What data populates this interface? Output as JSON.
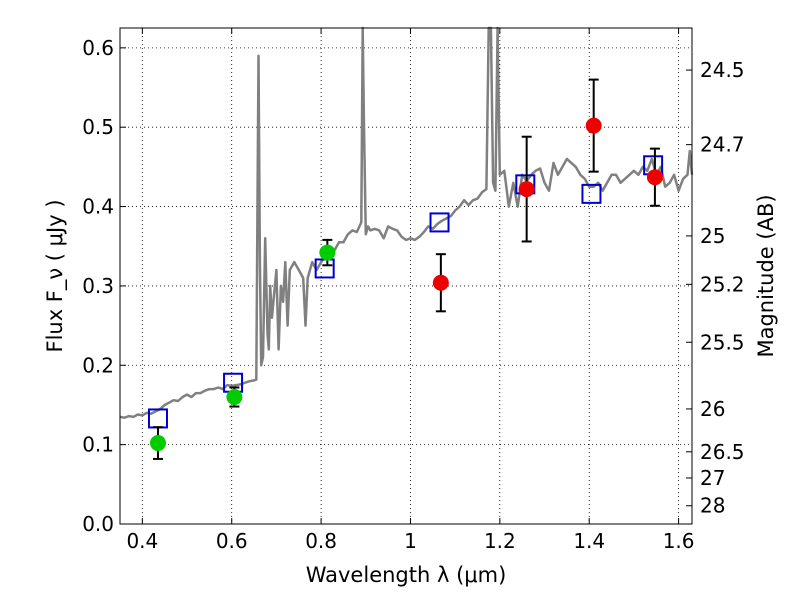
{
  "chart_data": {
    "type": "scatter",
    "title": "",
    "xlabel": "Wavelength  λ (μm)",
    "ylabel": "Flux  F_ν  ( μJy )",
    "y2label": "Magnitude (AB)",
    "xlim": [
      0.35,
      1.63
    ],
    "ylim": [
      0.0,
      0.625
    ],
    "grid": true,
    "x_ticks": [
      0.4,
      0.6,
      0.8,
      1.0,
      1.2,
      1.4,
      1.6
    ],
    "x_tick_labels": [
      "0.4",
      "0.6",
      "0.8",
      "1",
      "1.2",
      "1.4",
      "1.6"
    ],
    "y_ticks": [
      0.0,
      0.1,
      0.2,
      0.3,
      0.4,
      0.5,
      0.6
    ],
    "y_tick_labels": [
      "0.0",
      "0.1",
      "0.2",
      "0.3",
      "0.4",
      "0.5",
      "0.6"
    ],
    "y2_ticks": [
      {
        "label": "24.5",
        "flux": 0.572
      },
      {
        "label": "24.7",
        "flux": 0.478
      },
      {
        "label": "25",
        "flux": 0.363
      },
      {
        "label": "25.2",
        "flux": 0.302
      },
      {
        "label": "25.5",
        "flux": 0.229
      },
      {
        "label": "26",
        "flux": 0.145
      },
      {
        "label": "26.5",
        "flux": 0.091
      },
      {
        "label": "27",
        "flux": 0.058
      },
      {
        "label": "28",
        "flux": 0.023
      }
    ],
    "series": [
      {
        "kind": "model_spectrum",
        "color": "#808080",
        "x": [
          0.35,
          0.36,
          0.37,
          0.38,
          0.39,
          0.4,
          0.41,
          0.42,
          0.43,
          0.44,
          0.45,
          0.46,
          0.47,
          0.48,
          0.49,
          0.5,
          0.51,
          0.52,
          0.53,
          0.54,
          0.55,
          0.56,
          0.57,
          0.58,
          0.59,
          0.6,
          0.61,
          0.62,
          0.63,
          0.64,
          0.65,
          0.655,
          0.66,
          0.663,
          0.666,
          0.67,
          0.675,
          0.68,
          0.683,
          0.686,
          0.69,
          0.7,
          0.705,
          0.71,
          0.715,
          0.72,
          0.725,
          0.73,
          0.74,
          0.75,
          0.76,
          0.765,
          0.77,
          0.78,
          0.79,
          0.8,
          0.81,
          0.82,
          0.83,
          0.84,
          0.85,
          0.86,
          0.87,
          0.88,
          0.89,
          0.893,
          0.896,
          0.9,
          0.905,
          0.91,
          0.92,
          0.93,
          0.94,
          0.95,
          0.96,
          0.97,
          0.98,
          0.99,
          1.0,
          1.01,
          1.02,
          1.03,
          1.04,
          1.05,
          1.06,
          1.07,
          1.08,
          1.09,
          1.1,
          1.11,
          1.12,
          1.13,
          1.14,
          1.15,
          1.16,
          1.17,
          1.175,
          1.18,
          1.185,
          1.19,
          1.195,
          1.2,
          1.21,
          1.22,
          1.23,
          1.24,
          1.25,
          1.26,
          1.27,
          1.28,
          1.29,
          1.3,
          1.31,
          1.32,
          1.33,
          1.34,
          1.35,
          1.36,
          1.37,
          1.38,
          1.39,
          1.4,
          1.41,
          1.42,
          1.43,
          1.44,
          1.45,
          1.46,
          1.47,
          1.48,
          1.49,
          1.5,
          1.51,
          1.52,
          1.53,
          1.54,
          1.55,
          1.56,
          1.57,
          1.58,
          1.59,
          1.6,
          1.61,
          1.62,
          1.625,
          1.63
        ],
        "y": [
          0.135,
          0.134,
          0.136,
          0.135,
          0.138,
          0.137,
          0.14,
          0.139,
          0.142,
          0.145,
          0.15,
          0.153,
          0.156,
          0.155,
          0.16,
          0.163,
          0.16,
          0.165,
          0.165,
          0.168,
          0.17,
          0.17,
          0.172,
          0.17,
          0.175,
          0.174,
          0.175,
          0.176,
          0.178,
          0.18,
          0.181,
          0.182,
          0.59,
          0.33,
          0.2,
          0.21,
          0.36,
          0.24,
          0.22,
          0.3,
          0.26,
          0.32,
          0.22,
          0.3,
          0.28,
          0.33,
          0.25,
          0.32,
          0.33,
          0.32,
          0.31,
          0.25,
          0.31,
          0.33,
          0.32,
          0.33,
          0.338,
          0.34,
          0.345,
          0.355,
          0.355,
          0.365,
          0.37,
          0.368,
          0.38,
          0.625,
          0.5,
          0.365,
          0.375,
          0.37,
          0.372,
          0.37,
          0.36,
          0.375,
          0.372,
          0.37,
          0.362,
          0.358,
          0.36,
          0.358,
          0.362,
          0.368,
          0.375,
          0.372,
          0.378,
          0.382,
          0.385,
          0.388,
          0.395,
          0.4,
          0.408,
          0.402,
          0.408,
          0.41,
          0.418,
          0.422,
          0.625,
          0.625,
          0.43,
          0.42,
          0.625,
          0.44,
          0.445,
          0.4,
          0.43,
          0.4,
          0.44,
          0.432,
          0.44,
          0.445,
          0.448,
          0.43,
          0.42,
          0.455,
          0.44,
          0.45,
          0.46,
          0.455,
          0.45,
          0.44,
          0.435,
          0.425,
          0.425,
          0.43,
          0.42,
          0.43,
          0.44,
          0.44,
          0.43,
          0.435,
          0.44,
          0.445,
          0.44,
          0.45,
          0.445,
          0.46,
          0.44,
          0.45,
          0.425,
          0.43,
          0.44,
          0.42,
          0.435,
          0.44,
          0.47,
          0.44
        ]
      },
      {
        "kind": "model_photometry",
        "marker": "square-open",
        "color": "#0000cc",
        "x": [
          0.435,
          0.603,
          0.808,
          1.065,
          1.257,
          1.405,
          1.543
        ],
        "y": [
          0.133,
          0.178,
          0.322,
          0.38,
          0.428,
          0.416,
          0.452
        ]
      },
      {
        "kind": "observed_optical",
        "marker": "circle",
        "color": "#00cc00",
        "x": [
          0.435,
          0.606,
          0.814
        ],
        "y": [
          0.102,
          0.16,
          0.342
        ],
        "yerr": [
          0.02,
          0.012,
          0.016
        ]
      },
      {
        "kind": "observed_nir",
        "marker": "circle",
        "color": "#ee0000",
        "x": [
          1.068,
          1.26,
          1.41,
          1.547
        ],
        "y": [
          0.304,
          0.422,
          0.502,
          0.437
        ],
        "yerr": [
          0.036,
          0.066,
          0.058,
          0.036
        ]
      }
    ]
  }
}
